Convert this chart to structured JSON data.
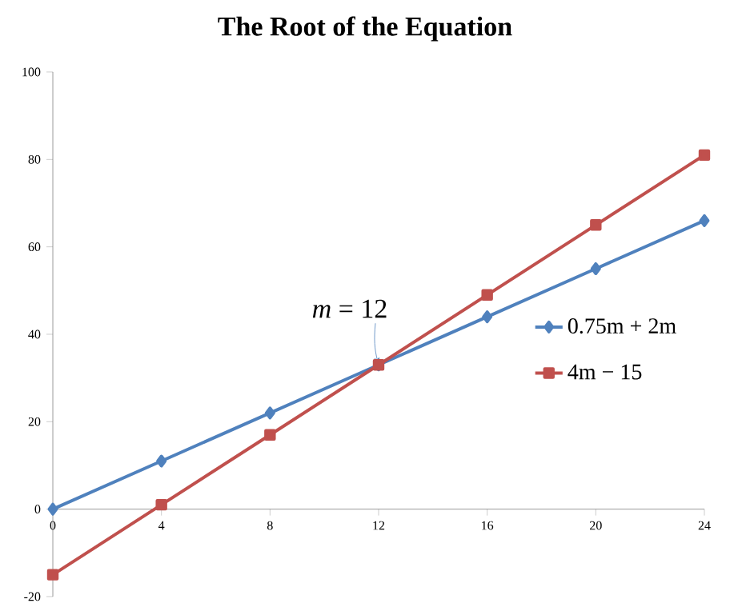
{
  "chart_data": {
    "type": "line",
    "title": "The Root of the Equation",
    "x": [
      0,
      4,
      8,
      12,
      16,
      20,
      24
    ],
    "series": [
      {
        "name": "0.75m + 2m",
        "color": "#4f81bd",
        "marker": "diamond",
        "values": [
          0,
          11,
          22,
          33,
          44,
          55,
          66
        ]
      },
      {
        "name": "4m − 15",
        "color": "#c0504d",
        "marker": "square",
        "values": [
          -15,
          1,
          17,
          33,
          49,
          65,
          81
        ]
      }
    ],
    "xlim": [
      0,
      24
    ],
    "xticks": [
      0,
      4,
      8,
      12,
      16,
      20,
      24
    ],
    "ylim": [
      -20,
      100
    ],
    "yticks": [
      -20,
      0,
      20,
      40,
      60,
      80,
      100
    ],
    "annotations": [
      {
        "text": "*m* = 12",
        "x": 12,
        "y": 33
      }
    ],
    "grid": false,
    "legend": "right"
  }
}
